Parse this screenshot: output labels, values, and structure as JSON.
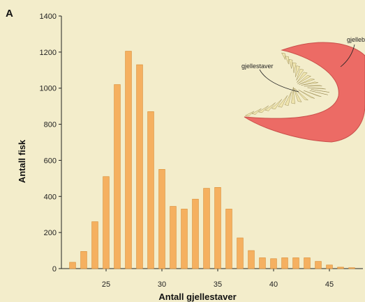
{
  "panel_label": "A",
  "colors": {
    "bar": "#f5b060",
    "bar_stroke": "#d98a30",
    "background": "#f3edcb",
    "gill_arch": "#ec6b65",
    "gill_rakers": "#f0e6b0"
  },
  "chart_data": {
    "type": "bar",
    "xlabel": "Antall gjellestaver",
    "ylabel": "Antall fisk",
    "xlim": [
      21,
      48
    ],
    "ylim": [
      0,
      1400
    ],
    "yticks": [
      0,
      200,
      400,
      600,
      800,
      1000,
      1200,
      1400
    ],
    "xticks": [
      25,
      30,
      35,
      40,
      45
    ],
    "x": [
      22,
      23,
      24,
      25,
      26,
      27,
      28,
      29,
      30,
      31,
      32,
      33,
      34,
      35,
      36,
      37,
      38,
      39,
      40,
      41,
      42,
      43,
      44,
      45,
      46,
      47
    ],
    "values": [
      35,
      95,
      260,
      510,
      1020,
      1205,
      1130,
      870,
      550,
      345,
      330,
      385,
      445,
      450,
      330,
      170,
      100,
      60,
      55,
      60,
      60,
      60,
      40,
      20,
      8,
      5
    ],
    "grid": false,
    "inset": {
      "description_labels": [
        "gjellestaver",
        "gjellebue"
      ]
    }
  }
}
